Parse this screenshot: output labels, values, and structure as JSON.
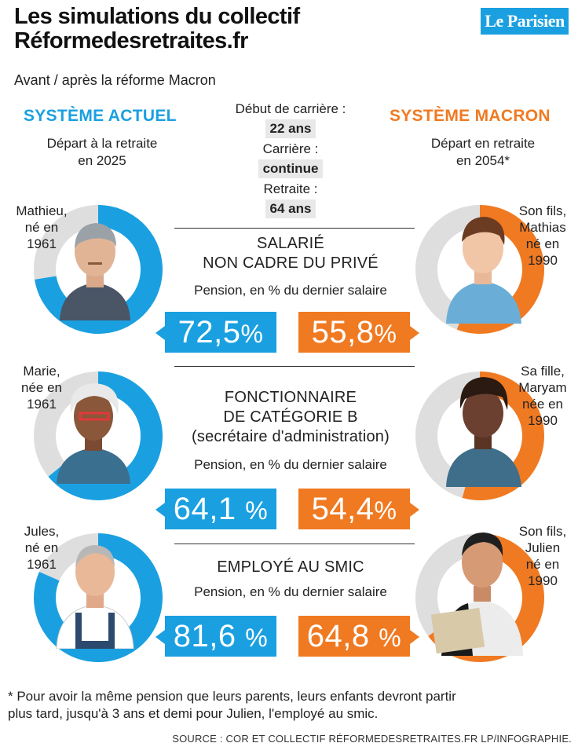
{
  "header": {
    "title_line1": "Les simulations du collectif",
    "title_line2": "Réformedesretraites.fr",
    "subtitle": "Avant / après la réforme Macron",
    "logo": "Le Parisien"
  },
  "left_system": {
    "title": "SYSTÈME ACTUEL",
    "sub_line1": "Départ à la retraite",
    "sub_line2": "en 2025",
    "color": "#1aa0e0"
  },
  "right_system": {
    "title": "SYSTÈME MACRON",
    "sub_line1": "Départ en retraite",
    "sub_line2": "en 2054*",
    "color": "#f07a22"
  },
  "center_info": {
    "label1": "Début de carrière :",
    "value1": "22 ans",
    "label2": "Carrière :",
    "value2": "continue",
    "label3": "Retraite :",
    "value3": "64 ans"
  },
  "sections": [
    {
      "title_line1": "SALARIÉ",
      "title_line2": "NON CADRE DU PRIVÉ",
      "title_line3": "",
      "subtitle": "Pension, en % du dernier salaire",
      "left_person": {
        "line1": "Mathieu,",
        "line2": "né en",
        "line3": "1961",
        "line4": ""
      },
      "right_person": {
        "line1": "Son fils,",
        "line2": "Mathias",
        "line3": "né en",
        "line4": "1990"
      },
      "left_value_text": "72,5",
      "right_value_text": "55,8",
      "unit": "%"
    },
    {
      "title_line1": "FONCTIONNAIRE",
      "title_line2": "DE CATÉGORIE B",
      "title_line3": "(secrétaire d'administration)",
      "subtitle": "Pension, en % du dernier salaire",
      "left_person": {
        "line1": "Marie,",
        "line2": "née en",
        "line3": "1961",
        "line4": ""
      },
      "right_person": {
        "line1": "Sa fille,",
        "line2": "Maryam",
        "line3": "née en",
        "line4": "1990"
      },
      "left_value_text": "64,1",
      "right_value_text": "54,4",
      "unit": "%"
    },
    {
      "title_line1": "EMPLOYÉ AU SMIC",
      "title_line2": "",
      "title_line3": "",
      "subtitle": "Pension, en % du dernier salaire",
      "left_person": {
        "line1": "Jules,",
        "line2": "né en",
        "line3": "1961",
        "line4": ""
      },
      "right_person": {
        "line1": "Son fils,",
        "line2": "Julien",
        "line3": "né en",
        "line4": "1990"
      },
      "left_value_text": "81,6",
      "right_value_text": "64,8",
      "unit": "%"
    }
  ],
  "chart_data": {
    "type": "pie",
    "categories": [
      "SALARIÉ NON CADRE DU PRIVÉ",
      "FONCTIONNAIRE DE CATÉGORIE B",
      "EMPLOYÉ AU SMIC"
    ],
    "series": [
      {
        "name": "SYSTÈME ACTUEL",
        "values": [
          72.5,
          64.1,
          81.6
        ],
        "color": "#1aa0e0"
      },
      {
        "name": "SYSTÈME MACRON",
        "values": [
          55.8,
          54.4,
          64.8
        ],
        "color": "#f07a22"
      }
    ],
    "remainder_color": "#dedede",
    "unit": "%"
  },
  "footer": {
    "note_line1": "* Pour avoir la même pension que leurs parents, leurs enfants devront partir",
    "note_line2": "plus tard, jusqu'à 3 ans et demi pour Julien, l'employé au smic.",
    "source": "SOURCE : COR ET COLLECTIF RÉFORMEDESRETRAITES.FR  LP/INFOGRAPHIE."
  }
}
